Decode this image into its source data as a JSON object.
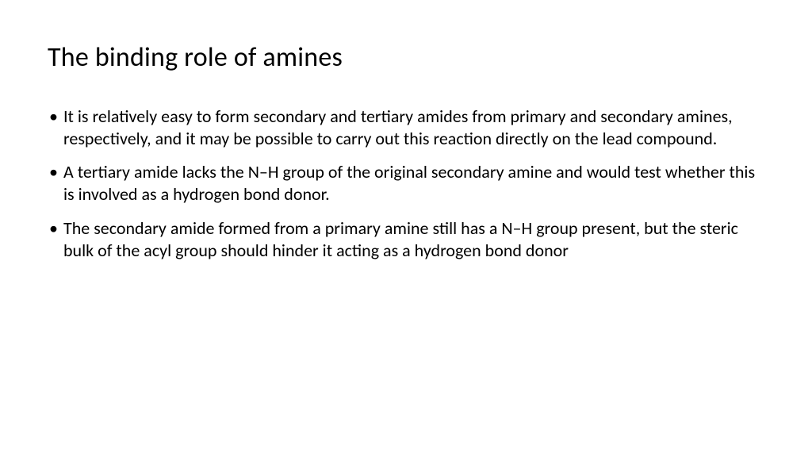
{
  "slide": {
    "title": "The binding role of amines",
    "title_fontsize": 34,
    "title_color": "#000000",
    "background_color": "#ffffff",
    "body_fontsize": 22,
    "body_color": "#000000",
    "bullets": [
      "It is relatively easy to form secondary and tertiary amides from primary and secondary amines, respectively, and it may be possible to carry out this reaction directly on the lead compound.",
      "A tertiary amide lacks the N–H group of the original secondary amine and would test whether this is involved as a hydrogen bond donor.",
      "The secondary amide formed from a primary amine still has a N–H group present, but the steric bulk of the acyl group should hinder it acting as a hydrogen bond donor"
    ]
  }
}
